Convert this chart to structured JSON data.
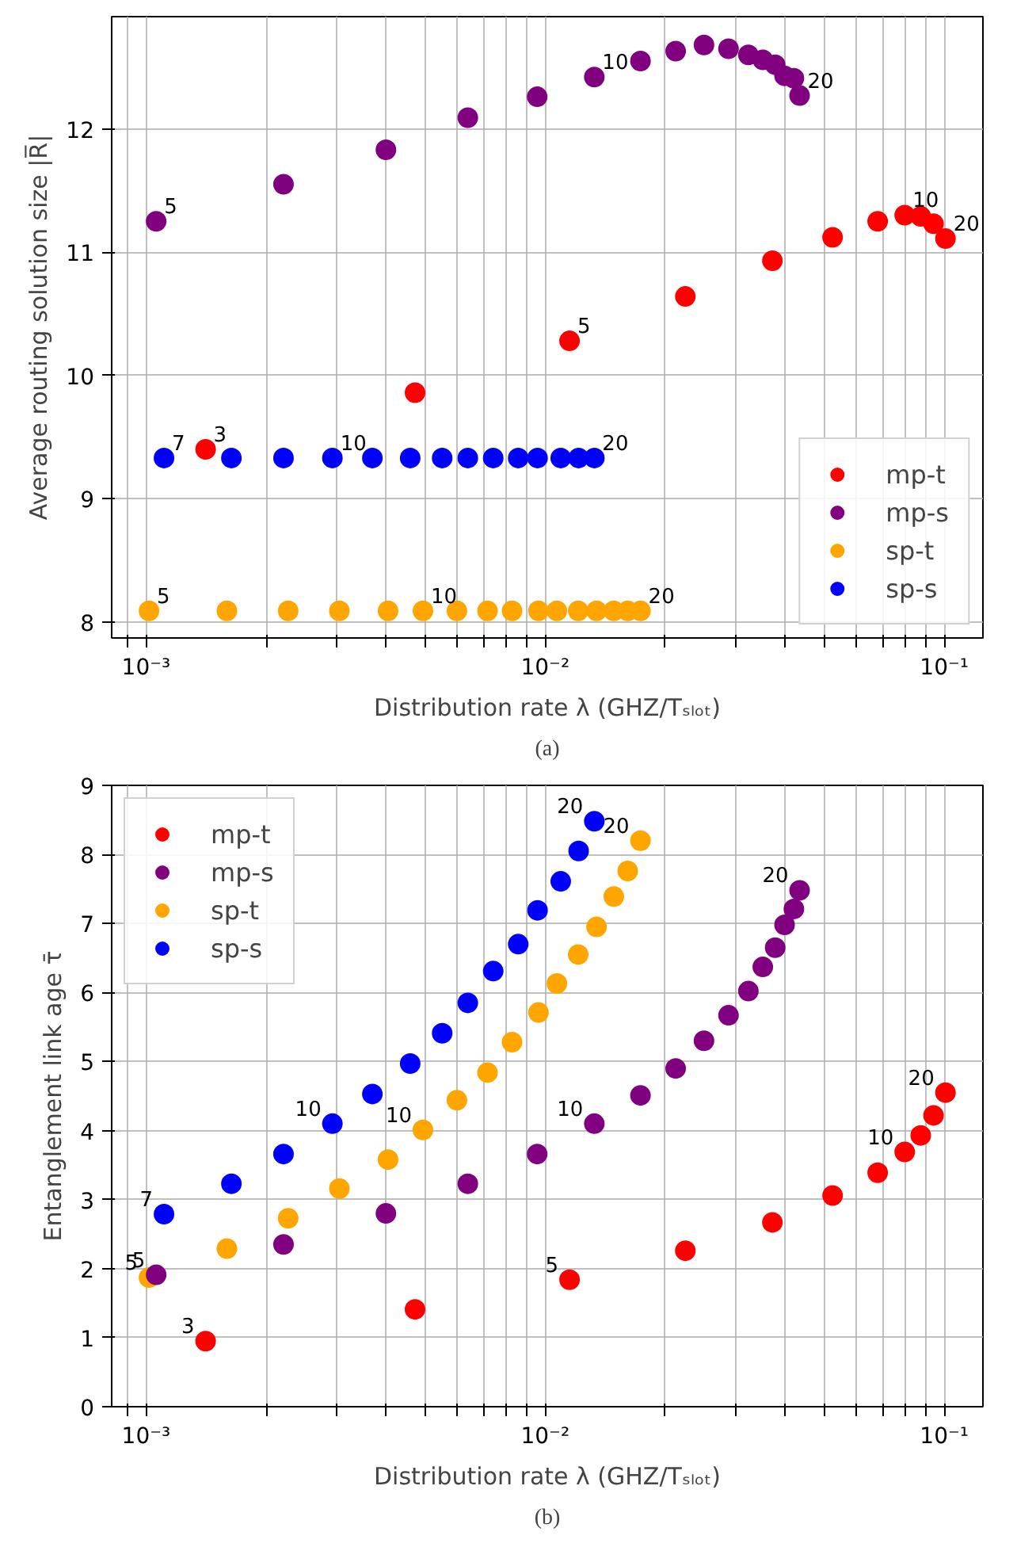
{
  "chart_data": [
    {
      "type": "scatter",
      "subtitle": "(a)",
      "xlabel": "Distribution rate λ (GHZ/Tₛₗₒₜ)",
      "ylabel": "Average routing solution size |R̅|",
      "log": "x",
      "grid": true,
      "legend": "bottom right",
      "marker": "circle",
      "xlim": [
        0.00082,
        0.125
      ],
      "ylim": [
        7.87,
        12.91
      ],
      "xticks": [
        {
          "value": 0.0009,
          "label": null
        },
        {
          "value": 0.001,
          "label": "10⁻³"
        },
        {
          "value": 0.002,
          "label": null
        },
        {
          "value": 0.003,
          "label": null
        },
        {
          "value": 0.004,
          "label": null
        },
        {
          "value": 0.005,
          "label": null
        },
        {
          "value": 0.006,
          "label": null
        },
        {
          "value": 0.007,
          "label": null
        },
        {
          "value": 0.008,
          "label": null
        },
        {
          "value": 0.009,
          "label": null
        },
        {
          "value": 0.01,
          "label": "10⁻²"
        },
        {
          "value": 0.02,
          "label": null
        },
        {
          "value": 0.03,
          "label": null
        },
        {
          "value": 0.04,
          "label": null
        },
        {
          "value": 0.05,
          "label": null
        },
        {
          "value": 0.06,
          "label": null
        },
        {
          "value": 0.07,
          "label": null
        },
        {
          "value": 0.08,
          "label": null
        },
        {
          "value": 0.09,
          "label": null
        },
        {
          "value": 0.1,
          "label": "10⁻¹"
        }
      ],
      "yticks": [
        8,
        9,
        10,
        11,
        12
      ],
      "series": [
        {
          "name": "mp-t",
          "color": "#ff0000",
          "x": [
            0.00141,
            0.00472,
            0.01151,
            0.02245,
            0.0371,
            0.0525,
            0.0681,
            0.0796,
            0.0873,
            0.094,
            0.1007
          ],
          "values": [
            9.4,
            9.86,
            10.28,
            10.64,
            10.93,
            11.12,
            11.25,
            11.3,
            11.29,
            11.23,
            11.11
          ]
        },
        {
          "name": "mp-s",
          "color": "#800080",
          "x": [
            0.00106,
            0.00221,
            0.00399,
            0.0064,
            0.00955,
            0.01328,
            0.01733,
            0.02123,
            0.025,
            0.0288,
            0.0323,
            0.0351,
            0.0377,
            0.0398,
            0.042,
            0.0434
          ],
          "values": [
            11.25,
            11.55,
            11.83,
            12.09,
            12.26,
            12.42,
            12.55,
            12.63,
            12.68,
            12.65,
            12.6,
            12.56,
            12.52,
            12.43,
            12.41,
            12.27
          ]
        },
        {
          "name": "sp-t",
          "color": "#ffa500",
          "x": [
            0.001017,
            0.001594,
            0.00227,
            0.00305,
            0.00404,
            0.00494,
            0.00601,
            0.00717,
            0.00826,
            0.00962,
            0.0107,
            0.0121,
            0.01345,
            0.01486,
            0.0161,
            0.01733
          ],
          "values": [
            8.09,
            8.09,
            8.09,
            8.09,
            8.09,
            8.09,
            8.09,
            8.09,
            8.09,
            8.09,
            8.09,
            8.09,
            8.09,
            8.09,
            8.09,
            8.09
          ]
        },
        {
          "name": "sp-s",
          "color": "#0000ff",
          "x": [
            0.001109,
            0.001636,
            0.00221,
            0.00293,
            0.00369,
            0.00459,
            0.00552,
            0.0064,
            0.00741,
            0.00856,
            0.00957,
            0.01094,
            0.01213,
            0.01328
          ],
          "values": [
            9.33,
            9.33,
            9.33,
            9.33,
            9.33,
            9.33,
            9.33,
            9.33,
            9.33,
            9.33,
            9.33,
            9.33,
            9.33,
            9.33
          ]
        }
      ],
      "annotations": [
        {
          "text": "3",
          "x": 0.00141,
          "y": 9.4
        },
        {
          "text": "5",
          "x": 0.01151,
          "y": 10.28
        },
        {
          "text": "10",
          "x": 0.0796,
          "y": 11.3
        },
        {
          "text": "20",
          "x": 0.1007,
          "y": 11.11
        },
        {
          "text": "5",
          "x": 0.00106,
          "y": 11.25
        },
        {
          "text": "10",
          "x": 0.01328,
          "y": 12.42
        },
        {
          "text": "20",
          "x": 0.0434,
          "y": 12.27
        },
        {
          "text": "5",
          "x": 0.001017,
          "y": 8.09
        },
        {
          "text": "10",
          "x": 0.00494,
          "y": 8.09
        },
        {
          "text": "20",
          "x": 0.01733,
          "y": 8.09
        },
        {
          "text": "7",
          "x": 0.001109,
          "y": 9.33
        },
        {
          "text": "10",
          "x": 0.00293,
          "y": 9.33
        },
        {
          "text": "20",
          "x": 0.01328,
          "y": 9.33
        }
      ]
    },
    {
      "type": "scatter",
      "subtitle": "(b)",
      "xlabel": "Distribution rate λ (GHZ/Tₛₗₒₜ)",
      "ylabel": "Entanglement link age τ̄",
      "log": "x",
      "grid": true,
      "legend": "top left",
      "marker": "circle",
      "xlim": [
        0.00082,
        0.125
      ],
      "ylim": [
        0,
        9
      ],
      "xticks": [
        {
          "value": 0.0009,
          "label": null
        },
        {
          "value": 0.001,
          "label": "10⁻³"
        },
        {
          "value": 0.002,
          "label": null
        },
        {
          "value": 0.003,
          "label": null
        },
        {
          "value": 0.004,
          "label": null
        },
        {
          "value": 0.005,
          "label": null
        },
        {
          "value": 0.006,
          "label": null
        },
        {
          "value": 0.007,
          "label": null
        },
        {
          "value": 0.008,
          "label": null
        },
        {
          "value": 0.009,
          "label": null
        },
        {
          "value": 0.01,
          "label": "10⁻²"
        },
        {
          "value": 0.02,
          "label": null
        },
        {
          "value": 0.03,
          "label": null
        },
        {
          "value": 0.04,
          "label": null
        },
        {
          "value": 0.05,
          "label": null
        },
        {
          "value": 0.06,
          "label": null
        },
        {
          "value": 0.07,
          "label": null
        },
        {
          "value": 0.08,
          "label": null
        },
        {
          "value": 0.09,
          "label": null
        },
        {
          "value": 0.1,
          "label": "10⁻¹"
        }
      ],
      "yticks": [
        0,
        1,
        2,
        3,
        4,
        5,
        6,
        7,
        8,
        9
      ],
      "series": [
        {
          "name": "mp-t",
          "color": "#ff0000",
          "x": [
            0.00141,
            0.00472,
            0.01151,
            0.02245,
            0.0371,
            0.0525,
            0.0681,
            0.0796,
            0.0873,
            0.094,
            0.1007
          ],
          "values": [
            0.95,
            1.41,
            1.84,
            2.26,
            2.67,
            3.06,
            3.39,
            3.69,
            3.93,
            4.22,
            4.55
          ]
        },
        {
          "name": "mp-s",
          "color": "#800080",
          "x": [
            0.00106,
            0.00221,
            0.00399,
            0.0064,
            0.00955,
            0.01328,
            0.01733,
            0.02123,
            0.025,
            0.0288,
            0.0323,
            0.0351,
            0.0377,
            0.0398,
            0.042,
            0.0434
          ],
          "values": [
            1.91,
            2.35,
            2.8,
            3.23,
            3.66,
            4.1,
            4.51,
            4.9,
            5.3,
            5.67,
            6.02,
            6.37,
            6.65,
            6.98,
            7.21,
            7.48
          ]
        },
        {
          "name": "sp-t",
          "color": "#ffa500",
          "x": [
            0.001017,
            0.001594,
            0.00227,
            0.00305,
            0.00404,
            0.00494,
            0.00601,
            0.00717,
            0.00826,
            0.00962,
            0.0107,
            0.0121,
            0.01345,
            0.01486,
            0.0161,
            0.01733
          ],
          "values": [
            1.87,
            2.29,
            2.73,
            3.16,
            3.58,
            4.01,
            4.44,
            4.84,
            5.28,
            5.71,
            6.13,
            6.55,
            6.95,
            7.39,
            7.76,
            8.2
          ]
        },
        {
          "name": "sp-s",
          "color": "#0000ff",
          "x": [
            0.001109,
            0.001636,
            0.00221,
            0.00293,
            0.00369,
            0.00459,
            0.00552,
            0.0064,
            0.00741,
            0.00856,
            0.00957,
            0.01094,
            0.01213,
            0.01328
          ],
          "values": [
            2.79,
            3.23,
            3.66,
            4.1,
            4.53,
            4.97,
            5.41,
            5.85,
            6.31,
            6.7,
            7.19,
            7.61,
            8.05,
            8.48
          ]
        }
      ],
      "annotations": [
        {
          "text": "3",
          "x": 0.00141,
          "y": 0.95
        },
        {
          "text": "5",
          "x": 0.01151,
          "y": 1.84
        },
        {
          "text": "10",
          "x": 0.0796,
          "y": 3.69
        },
        {
          "text": "20",
          "x": 0.1007,
          "y": 4.55
        },
        {
          "text": "5",
          "x": 0.00106,
          "y": 1.91
        },
        {
          "text": "10",
          "x": 0.01328,
          "y": 4.1
        },
        {
          "text": "20",
          "x": 0.0434,
          "y": 7.48
        },
        {
          "text": "5",
          "x": 0.001017,
          "y": 1.87
        },
        {
          "text": "10",
          "x": 0.00494,
          "y": 4.01
        },
        {
          "text": "20",
          "x": 0.01733,
          "y": 8.2
        },
        {
          "text": "7",
          "x": 0.001109,
          "y": 2.79
        },
        {
          "text": "10",
          "x": 0.00293,
          "y": 4.1
        },
        {
          "text": "20",
          "x": 0.01328,
          "y": 8.48
        }
      ]
    }
  ]
}
